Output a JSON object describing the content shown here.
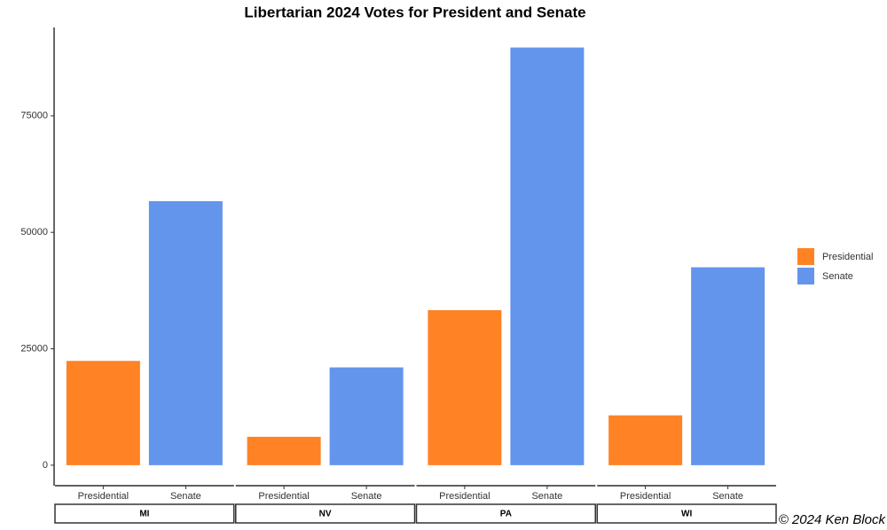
{
  "chart_data": {
    "type": "bar",
    "title": "Libertarian 2024 Votes for President and Senate",
    "categories": [
      "MI",
      "NV",
      "PA",
      "WI"
    ],
    "series": [
      {
        "name": "Presidential",
        "color": "#ff8224",
        "values": [
          22400,
          6100,
          33300,
          10700
        ]
      },
      {
        "name": "Senate",
        "color": "#6495ed",
        "values": [
          56700,
          21000,
          89700,
          42500
        ]
      }
    ],
    "ylim": [
      -4400,
      94000
    ],
    "yticks": [
      0,
      25000,
      50000,
      75000
    ],
    "grid": false,
    "legend": "right",
    "caption": "© 2024 Ken Block"
  }
}
